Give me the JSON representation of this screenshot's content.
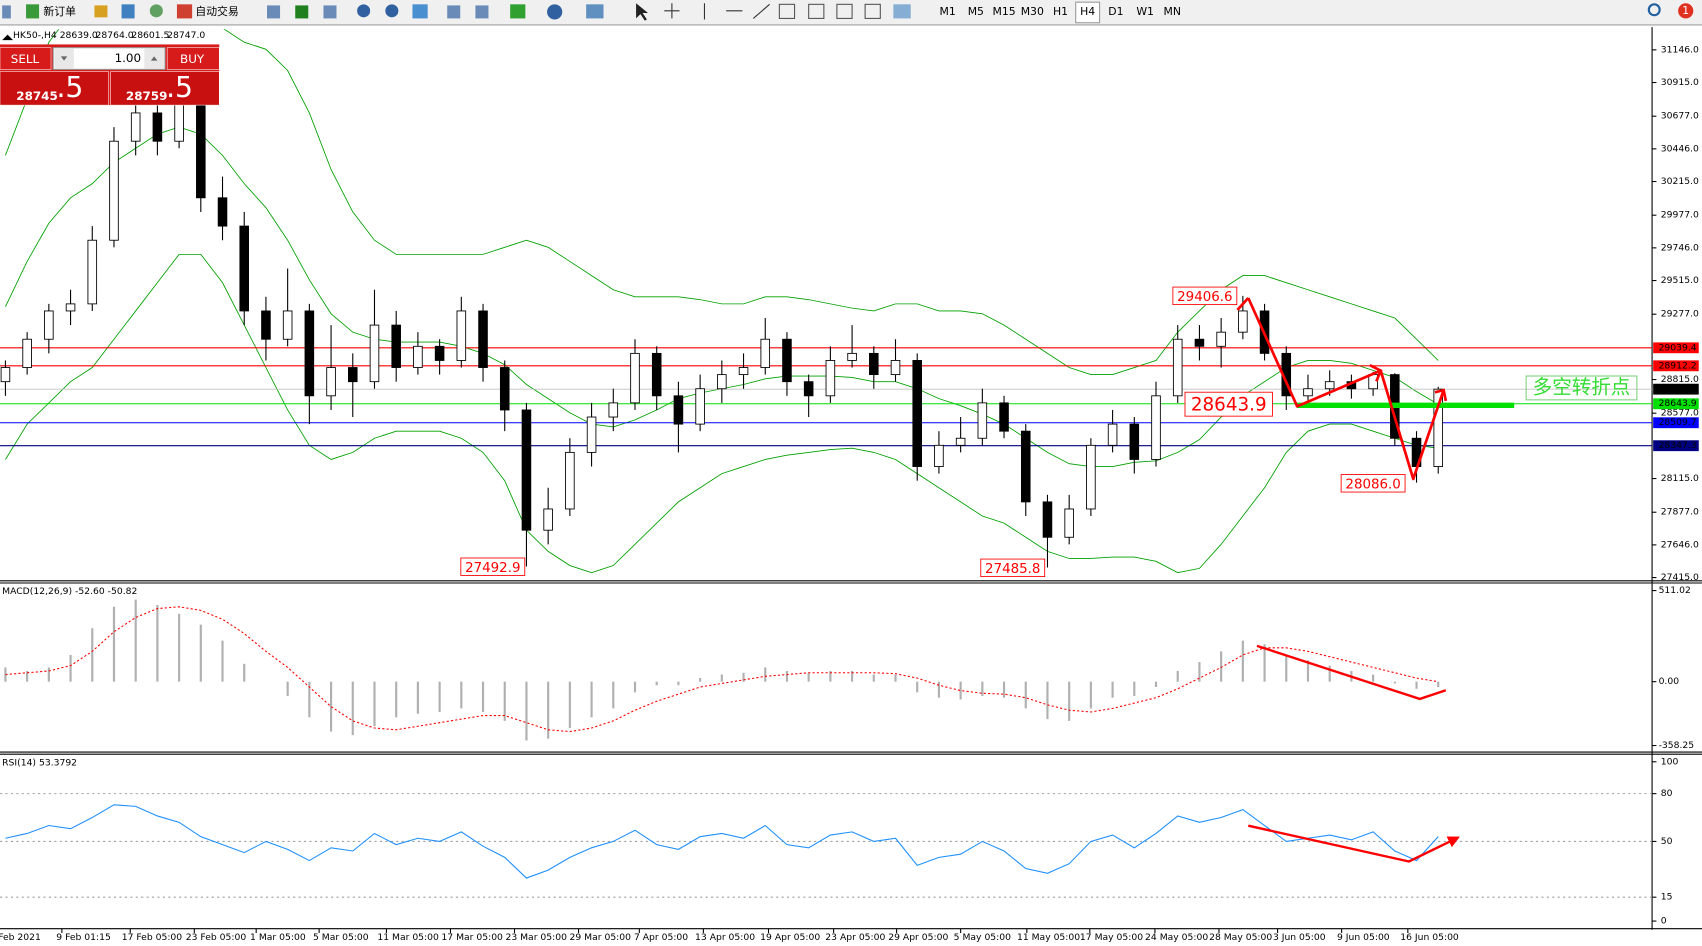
{
  "toolbar": {
    "new_order": "新订单",
    "auto_trading": "自动交易",
    "timeframes": [
      "M1",
      "M5",
      "M15",
      "M30",
      "H1",
      "H4",
      "D1",
      "W1",
      "MN"
    ],
    "active_timeframe": "H4",
    "notifications": "1"
  },
  "order_panel": {
    "sell": "SELL",
    "buy": "BUY",
    "volume": "1.00",
    "sell_price": {
      "main": "28745",
      "tail": ".5"
    },
    "buy_price": {
      "main": "28759",
      "tail": ".5"
    }
  },
  "main_chart": {
    "symbol": "HK50-,H4",
    "ohlc": [
      "28639.0",
      "28764.0",
      "28601.5",
      "28747.0"
    ],
    "ylim": [
      27415,
      31146
    ],
    "yticks": [
      {
        "value": 31146,
        "label": "31146.0"
      },
      {
        "value": 30915,
        "label": "30915.0"
      },
      {
        "value": 30677,
        "label": "30677.0"
      },
      {
        "value": 30446,
        "label": "30446.0"
      },
      {
        "value": 30215,
        "label": "30215.0"
      },
      {
        "value": 29977,
        "label": "29977.0"
      },
      {
        "value": 29746,
        "label": "29746.0"
      },
      {
        "value": 29515,
        "label": "29515.0"
      },
      {
        "value": 29277,
        "label": "29277.0"
      },
      {
        "value": 28815,
        "label": "28815.0"
      },
      {
        "value": 28577,
        "label": "28577.0"
      },
      {
        "value": 28115,
        "label": "28115.0"
      },
      {
        "value": 27877,
        "label": "27877.0"
      },
      {
        "value": 27646,
        "label": "27646.0"
      },
      {
        "value": 27415,
        "label": "27415.0"
      }
    ],
    "levels": [
      {
        "value": 29039.4,
        "label": "29039.4",
        "color": "#ff0000"
      },
      {
        "value": 28912.2,
        "label": "28912.2",
        "color": "#ff0000"
      },
      {
        "value": 28643.9,
        "label": "28643.9",
        "color": "#00e000"
      },
      {
        "value": 28509.7,
        "label": "28509.7",
        "color": "#0000ff"
      },
      {
        "value": 28347.3,
        "label": "28347.3",
        "color": "#000080"
      }
    ],
    "price_markers": [
      {
        "value": 28747,
        "label": "28747.0",
        "color": "#000000"
      }
    ],
    "bull_color": "#ffffff",
    "bear_color": "#000000",
    "candles": [
      [
        28800,
        28950,
        28700,
        28900
      ],
      [
        28900,
        29150,
        28850,
        29100
      ],
      [
        29100,
        29350,
        29000,
        29300
      ],
      [
        29300,
        29450,
        29200,
        29350
      ],
      [
        29350,
        29900,
        29300,
        29800
      ],
      [
        29800,
        30600,
        29750,
        30500
      ],
      [
        30500,
        30800,
        30400,
        30700
      ],
      [
        30700,
        30850,
        30400,
        30500
      ],
      [
        30500,
        31000,
        30450,
        30900
      ],
      [
        30900,
        30950,
        30000,
        30100
      ],
      [
        30100,
        30250,
        29800,
        29900
      ],
      [
        29900,
        30000,
        29200,
        29300
      ],
      [
        29300,
        29400,
        28950,
        29100
      ],
      [
        29100,
        29600,
        29050,
        29300
      ],
      [
        29300,
        29350,
        28500,
        28700
      ],
      [
        28700,
        29200,
        28600,
        28900
      ],
      [
        28900,
        29000,
        28550,
        28800
      ],
      [
        28800,
        29450,
        28750,
        29200
      ],
      [
        29200,
        29300,
        28800,
        28900
      ],
      [
        28900,
        29150,
        28850,
        29050
      ],
      [
        29050,
        29100,
        28850,
        28950
      ],
      [
        28950,
        29400,
        28900,
        29300
      ],
      [
        29300,
        29350,
        28800,
        28900
      ],
      [
        28900,
        28950,
        28450,
        28600
      ],
      [
        28600,
        28650,
        27492.9,
        27750
      ],
      [
        27750,
        28050,
        27650,
        27900
      ],
      [
        27900,
        28400,
        27850,
        28300
      ],
      [
        28300,
        28650,
        28200,
        28550
      ],
      [
        28550,
        28750,
        28450,
        28650
      ],
      [
        28650,
        29100,
        28600,
        29000
      ],
      [
        29000,
        29050,
        28600,
        28700
      ],
      [
        28700,
        28800,
        28300,
        28500
      ],
      [
        28500,
        28850,
        28450,
        28750
      ],
      [
        28750,
        28950,
        28650,
        28850
      ],
      [
        28850,
        29000,
        28750,
        28900
      ],
      [
        28900,
        29250,
        28850,
        29100
      ],
      [
        29100,
        29150,
        28700,
        28800
      ],
      [
        28800,
        28850,
        28550,
        28700
      ],
      [
        28700,
        29050,
        28650,
        28950
      ],
      [
        28950,
        29200,
        28900,
        29000
      ],
      [
        29000,
        29050,
        28750,
        28850
      ],
      [
        28850,
        29100,
        28800,
        28950
      ],
      [
        28950,
        29000,
        28100,
        28200
      ],
      [
        28200,
        28450,
        28150,
        28350
      ],
      [
        28350,
        28550,
        28300,
        28400
      ],
      [
        28400,
        28750,
        28350,
        28650
      ],
      [
        28650,
        28700,
        28400,
        28450
      ],
      [
        28450,
        28500,
        27850,
        27950
      ],
      [
        27950,
        28000,
        27485.8,
        27700
      ],
      [
        27700,
        28000,
        27650,
        27900
      ],
      [
        27900,
        28400,
        27850,
        28350
      ],
      [
        28350,
        28600,
        28300,
        28500
      ],
      [
        28500,
        28550,
        28150,
        28250
      ],
      [
        28250,
        28800,
        28200,
        28700
      ],
      [
        28700,
        29200,
        28650,
        29100
      ],
      [
        29100,
        29200,
        28950,
        29050
      ],
      [
        29050,
        29250,
        28900,
        29150
      ],
      [
        29150,
        29406.6,
        29100,
        29300
      ],
      [
        29300,
        29350,
        28950,
        29000
      ],
      [
        29000,
        29050,
        28600,
        28700
      ],
      [
        28700,
        28850,
        28650,
        28750
      ],
      [
        28750,
        28880,
        28700,
        28800
      ],
      [
        28800,
        28850,
        28680,
        28750
      ],
      [
        28750,
        28870,
        28700,
        28850
      ],
      [
        28850,
        28860,
        28350,
        28400
      ],
      [
        28400,
        28450,
        28086,
        28200
      ],
      [
        28200,
        28764,
        28150,
        28747
      ]
    ],
    "bollinger": {
      "color": "#00a000",
      "upper": [
        30400,
        30800,
        31200,
        31400,
        31500,
        31600,
        31600,
        31600,
        31500,
        31400,
        31300,
        31200,
        31150,
        31000,
        30700,
        30300,
        30000,
        29800,
        29700,
        29700,
        29700,
        29700,
        29700,
        29750,
        29800,
        29750,
        29650,
        29550,
        29450,
        29400,
        29400,
        29400,
        29380,
        29350,
        29350,
        29400,
        29400,
        29380,
        29350,
        29320,
        29300,
        29350,
        29350,
        29300,
        29300,
        29280,
        29200,
        29100,
        29000,
        28900,
        28850,
        28850,
        28900,
        28950,
        29150,
        29300,
        29450,
        29550,
        29550,
        29500,
        29450,
        29400,
        29350,
        29300,
        29250,
        29100,
        28950
      ],
      "middle": [
        29330,
        29650,
        29920,
        30100,
        30200,
        30350,
        30450,
        30550,
        30600,
        30550,
        30400,
        30200,
        30030,
        29800,
        29520,
        29280,
        29150,
        29100,
        29080,
        29080,
        29080,
        29050,
        29000,
        28920,
        28780,
        28680,
        28580,
        28500,
        28480,
        28530,
        28600,
        28680,
        28720,
        28750,
        28780,
        28820,
        28840,
        28840,
        28840,
        28830,
        28800,
        28800,
        28750,
        28680,
        28630,
        28570,
        28500,
        28400,
        28300,
        28220,
        28200,
        28200,
        28230,
        28240,
        28300,
        28390,
        28550,
        28700,
        28800,
        28900,
        28950,
        28950,
        28930,
        28880,
        28830,
        28730,
        28640
      ],
      "lower": [
        28250,
        28500,
        28650,
        28800,
        28900,
        29100,
        29300,
        29500,
        29700,
        29700,
        29500,
        29200,
        28900,
        28600,
        28350,
        28250,
        28300,
        28400,
        28450,
        28450,
        28450,
        28400,
        28300,
        28100,
        27750,
        27600,
        27500,
        27450,
        27500,
        27650,
        27800,
        27950,
        28050,
        28150,
        28200,
        28250,
        28280,
        28300,
        28320,
        28330,
        28300,
        28250,
        28150,
        28050,
        27950,
        27850,
        27800,
        27700,
        27600,
        27550,
        27550,
        27560,
        27560,
        27530,
        27450,
        27480,
        27650,
        27850,
        28050,
        28300,
        28450,
        28500,
        28500,
        28450,
        28400,
        28350,
        28330
      ]
    },
    "annotations": [
      "29406.6",
      "28643.9",
      "28086.0",
      "27492.9",
      "27485.8"
    ],
    "pivot_label": "多空转折点"
  },
  "macd": {
    "title": "MACD(12,26,9) -52.60 -50.82",
    "ylim": [
      -358.25,
      511.02
    ],
    "yticks": [
      {
        "value": 511.02,
        "label": "511.02"
      },
      {
        "value": 0,
        "label": "0.00"
      },
      {
        "value": -358.25,
        "label": "-358.25"
      }
    ],
    "hist_color": "#b0b0b0",
    "signal_color": "#ff0000",
    "histogram": [
      80,
      60,
      80,
      150,
      300,
      420,
      460,
      430,
      380,
      320,
      230,
      100,
      0,
      -80,
      -200,
      -280,
      -300,
      -250,
      -200,
      -180,
      -170,
      -150,
      -170,
      -220,
      -330,
      -320,
      -260,
      -200,
      -150,
      -60,
      -20,
      -20,
      20,
      40,
      50,
      80,
      60,
      50,
      60,
      60,
      40,
      40,
      -60,
      -90,
      -100,
      -80,
      -90,
      -150,
      -210,
      -220,
      -150,
      -90,
      -80,
      -30,
      60,
      110,
      170,
      230,
      210,
      150,
      120,
      90,
      60,
      40,
      -10,
      -40,
      -30
    ],
    "signal": [
      40,
      50,
      60,
      90,
      170,
      280,
      360,
      410,
      420,
      400,
      350,
      270,
      170,
      80,
      -30,
      -140,
      -220,
      -260,
      -270,
      -250,
      -230,
      -210,
      -190,
      -190,
      -230,
      -270,
      -280,
      -260,
      -220,
      -160,
      -110,
      -70,
      -30,
      -10,
      10,
      30,
      40,
      50,
      50,
      50,
      50,
      45,
      20,
      -20,
      -50,
      -65,
      -70,
      -90,
      -130,
      -160,
      -170,
      -150,
      -120,
      -90,
      -40,
      20,
      80,
      150,
      190,
      190,
      170,
      140,
      110,
      80,
      50,
      20,
      0
    ]
  },
  "rsi": {
    "title": "RSI(14) 53.3792",
    "ylim": [
      0,
      100
    ],
    "yticks": [
      100,
      80,
      50,
      15,
      0
    ],
    "color": "#1e90ff",
    "values": [
      52,
      55,
      60,
      58,
      65,
      73,
      72,
      66,
      62,
      53,
      48,
      43,
      50,
      45,
      38,
      46,
      44,
      55,
      48,
      52,
      50,
      56,
      47,
      40,
      27,
      32,
      40,
      46,
      50,
      57,
      48,
      45,
      53,
      55,
      52,
      60,
      48,
      46,
      54,
      56,
      50,
      52,
      35,
      40,
      42,
      50,
      44,
      33,
      30,
      36,
      50,
      54,
      46,
      55,
      66,
      62,
      65,
      70,
      60,
      50,
      52,
      54,
      51,
      56,
      44,
      38,
      53
    ]
  },
  "xaxis": {
    "labels": [
      "Feb 2021",
      "9 Feb 01:15",
      "17 Feb 05:00",
      "23 Feb 05:00",
      "1 Mar 05:00",
      "5 Mar 05:00",
      "11 Mar 05:00",
      "17 Mar 05:00",
      "23 Mar 05:00",
      "29 Mar 05:00",
      "7 Apr 05:00",
      "13 Apr 05:00",
      "19 Apr 05:00",
      "23 Apr 05:00",
      "29 Apr 05:00",
      "5 May 05:00",
      "11 May 05:00",
      "17 May 05:00",
      "24 May 05:00",
      "28 May 05:00",
      "3 Jun 05:00",
      "9 Jun 05:00",
      "16 Jun 05:00"
    ]
  }
}
